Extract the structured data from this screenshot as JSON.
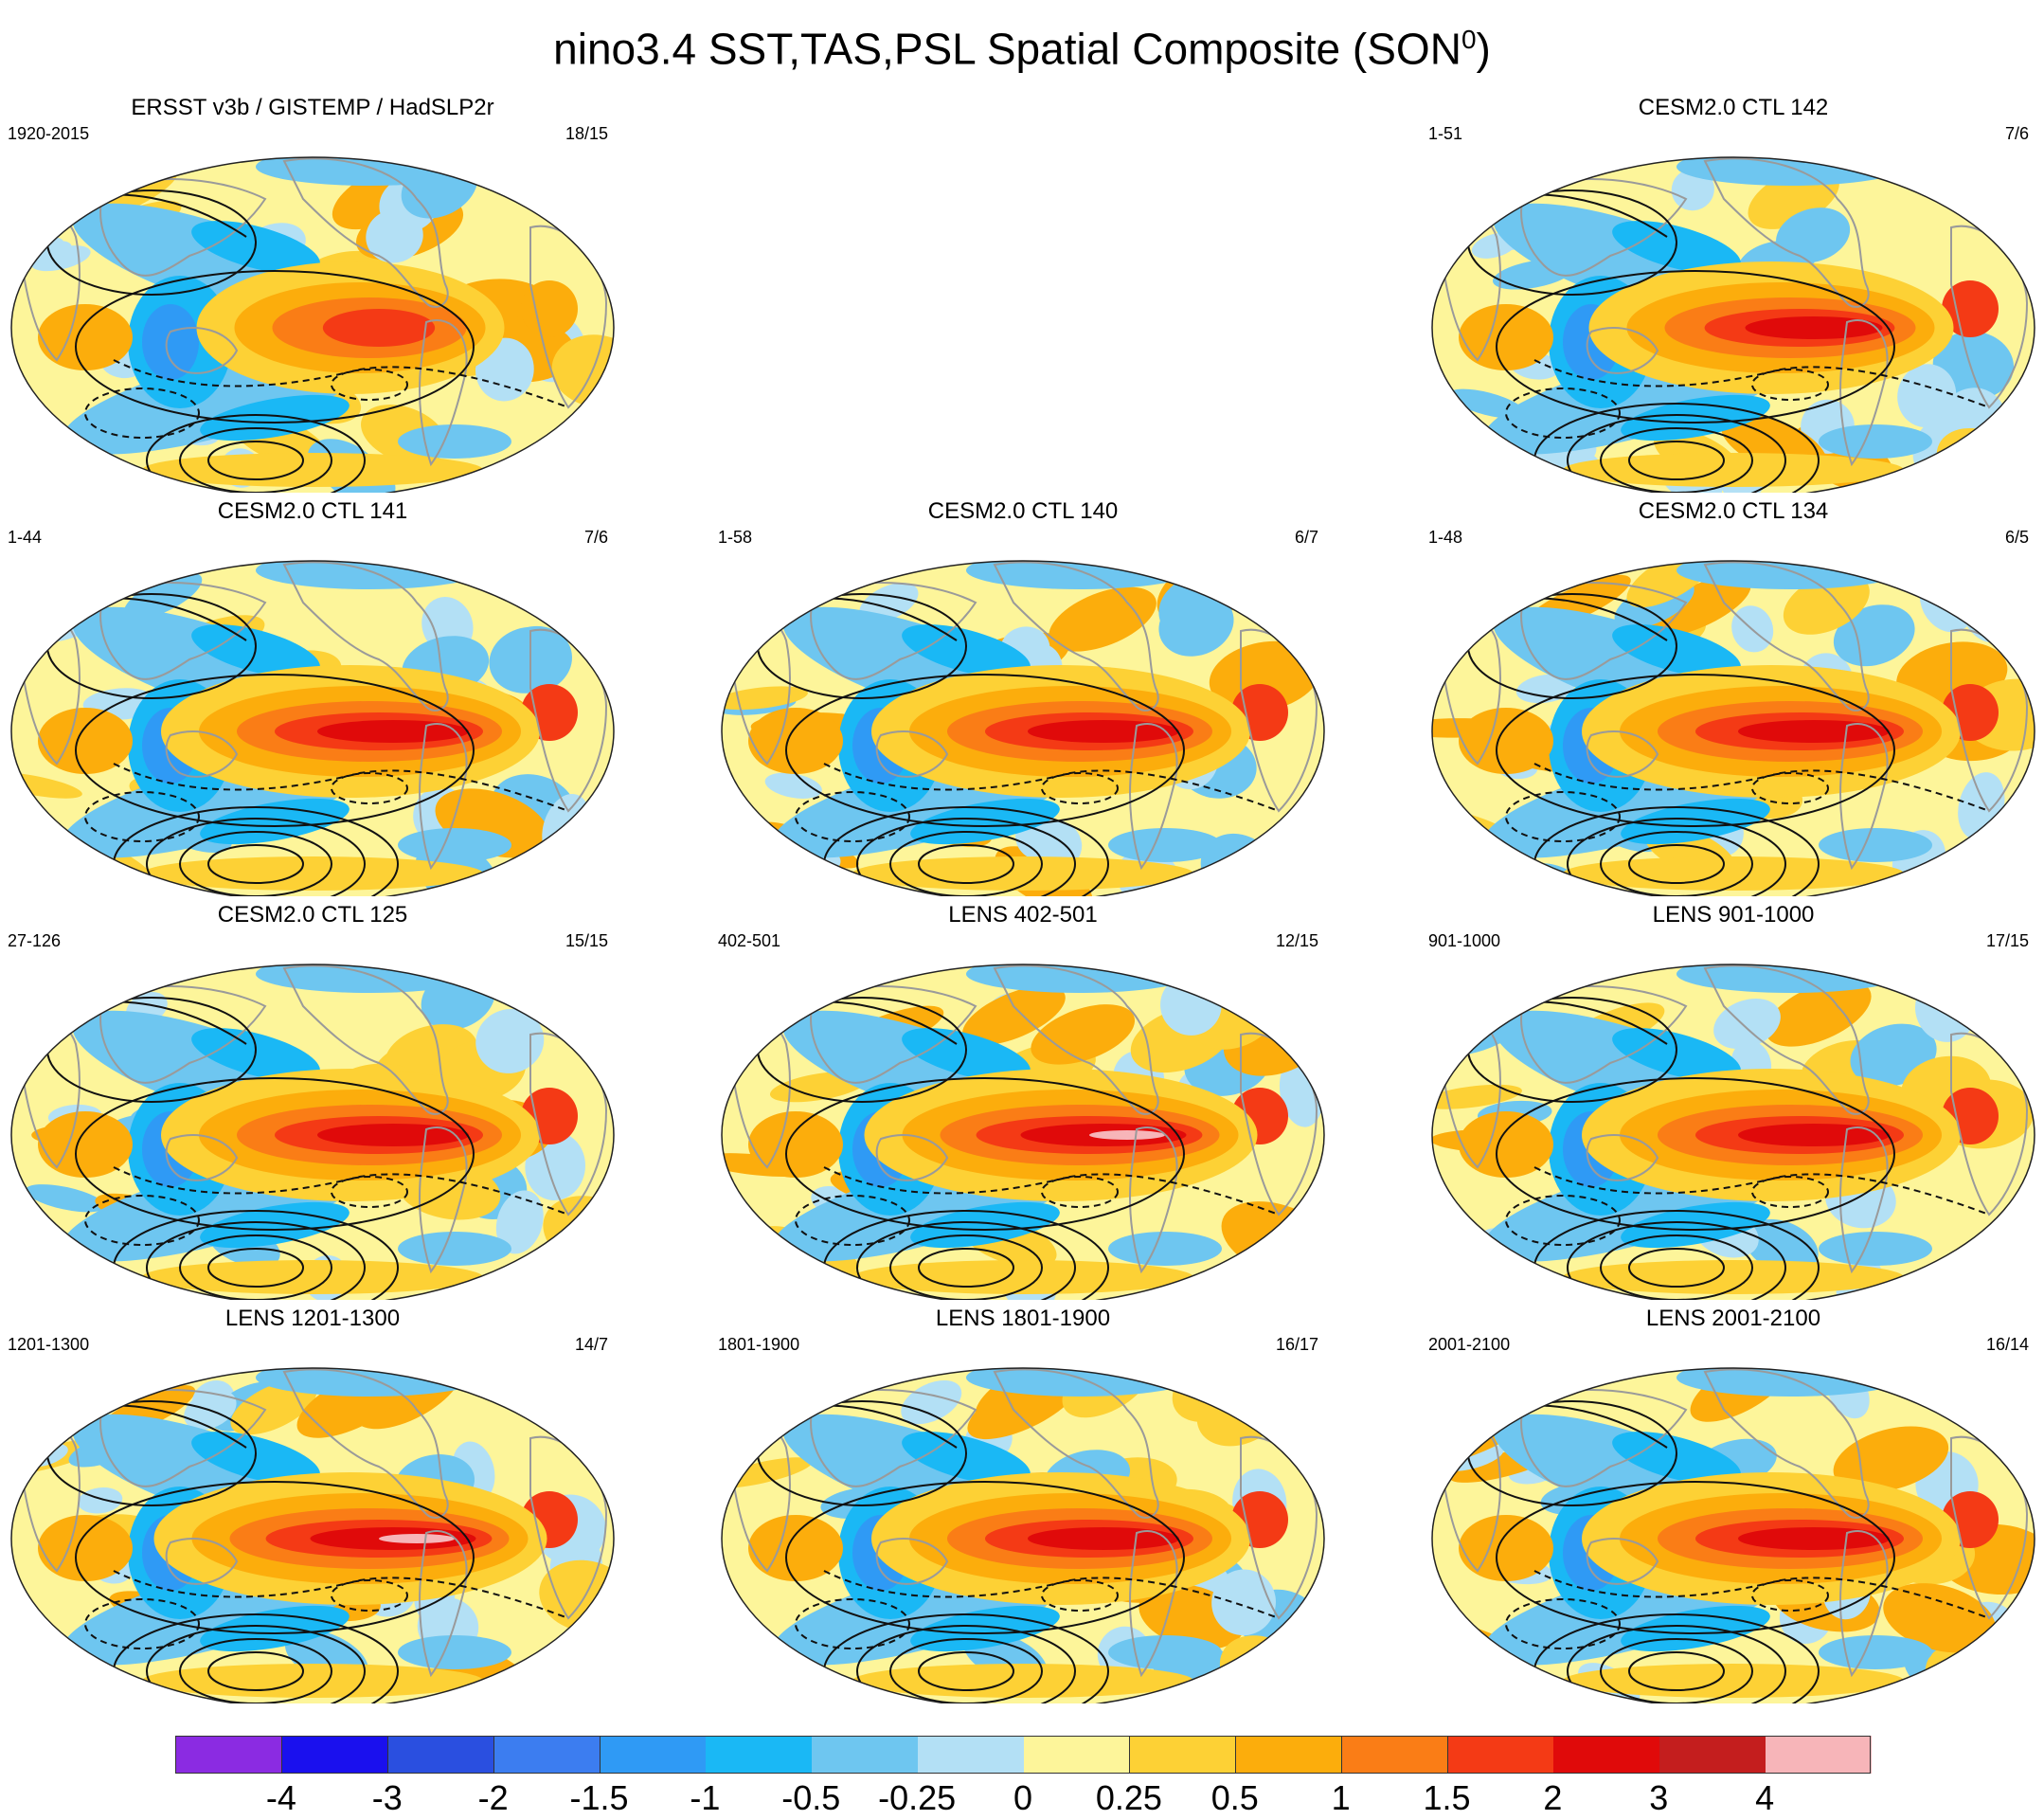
{
  "title": {
    "main": "nino3.4 SST,TAS,PSL Spatial Composite (SON",
    "superscript": "0",
    "close": ")"
  },
  "panels": [
    {
      "title": "ERSST v3b / GISTEMP / HadSLP2r",
      "left": "1920-2015",
      "right": "18/15",
      "variant": "obs",
      "strength": 0.75
    },
    {
      "title": "CESM2.0 CTL 142",
      "left": "1-51",
      "right": "7/6",
      "variant": "model",
      "strength": 0.95
    },
    {
      "title": "CESM2.0 CTL 141",
      "left": "1-44",
      "right": "7/6",
      "variant": "model",
      "strength": 1.0
    },
    {
      "title": "CESM2.0 CTL 140",
      "left": "1-58",
      "right": "6/7",
      "variant": "model",
      "strength": 1.0
    },
    {
      "title": "CESM2.0 CTL 134",
      "left": "1-48",
      "right": "6/5",
      "variant": "model",
      "strength": 1.0
    },
    {
      "title": "CESM2.0 CTL 125",
      "left": "27-126",
      "right": "15/15",
      "variant": "model",
      "strength": 1.0
    },
    {
      "title": "LENS 402-501",
      "left": "402-501",
      "right": "12/15",
      "variant": "model",
      "strength": 1.05
    },
    {
      "title": "LENS 901-1000",
      "left": "901-1000",
      "right": "17/15",
      "variant": "model",
      "strength": 1.0
    },
    {
      "title": "LENS 1201-1300",
      "left": "1201-1300",
      "right": "14/7",
      "variant": "model",
      "strength": 1.05
    },
    {
      "title": "LENS 1801-1900",
      "left": "1801-1900",
      "right": "16/17",
      "variant": "model",
      "strength": 1.0
    },
    {
      "title": "LENS 2001-2100",
      "left": "2001-2100",
      "right": "16/14",
      "variant": "model",
      "strength": 1.0
    }
  ],
  "colorbar": {
    "colors": [
      "#8b2be2",
      "#1a10ee",
      "#2a4fe0",
      "#3c7df0",
      "#2f9af5",
      "#1ab8f5",
      "#6ec6f0",
      "#b3e0f5",
      "#fdf59a",
      "#fdd135",
      "#fcad0c",
      "#fa7d16",
      "#f43a15",
      "#e00a0a",
      "#c41e1e",
      "#f7b5b9"
    ],
    "labels": [
      "-4",
      "-3",
      "-2",
      "-1.5",
      "-1",
      "-0.5",
      "-0.25",
      "0",
      "0.25",
      "0.5",
      "1",
      "1.5",
      "2",
      "3",
      "4"
    ]
  }
}
